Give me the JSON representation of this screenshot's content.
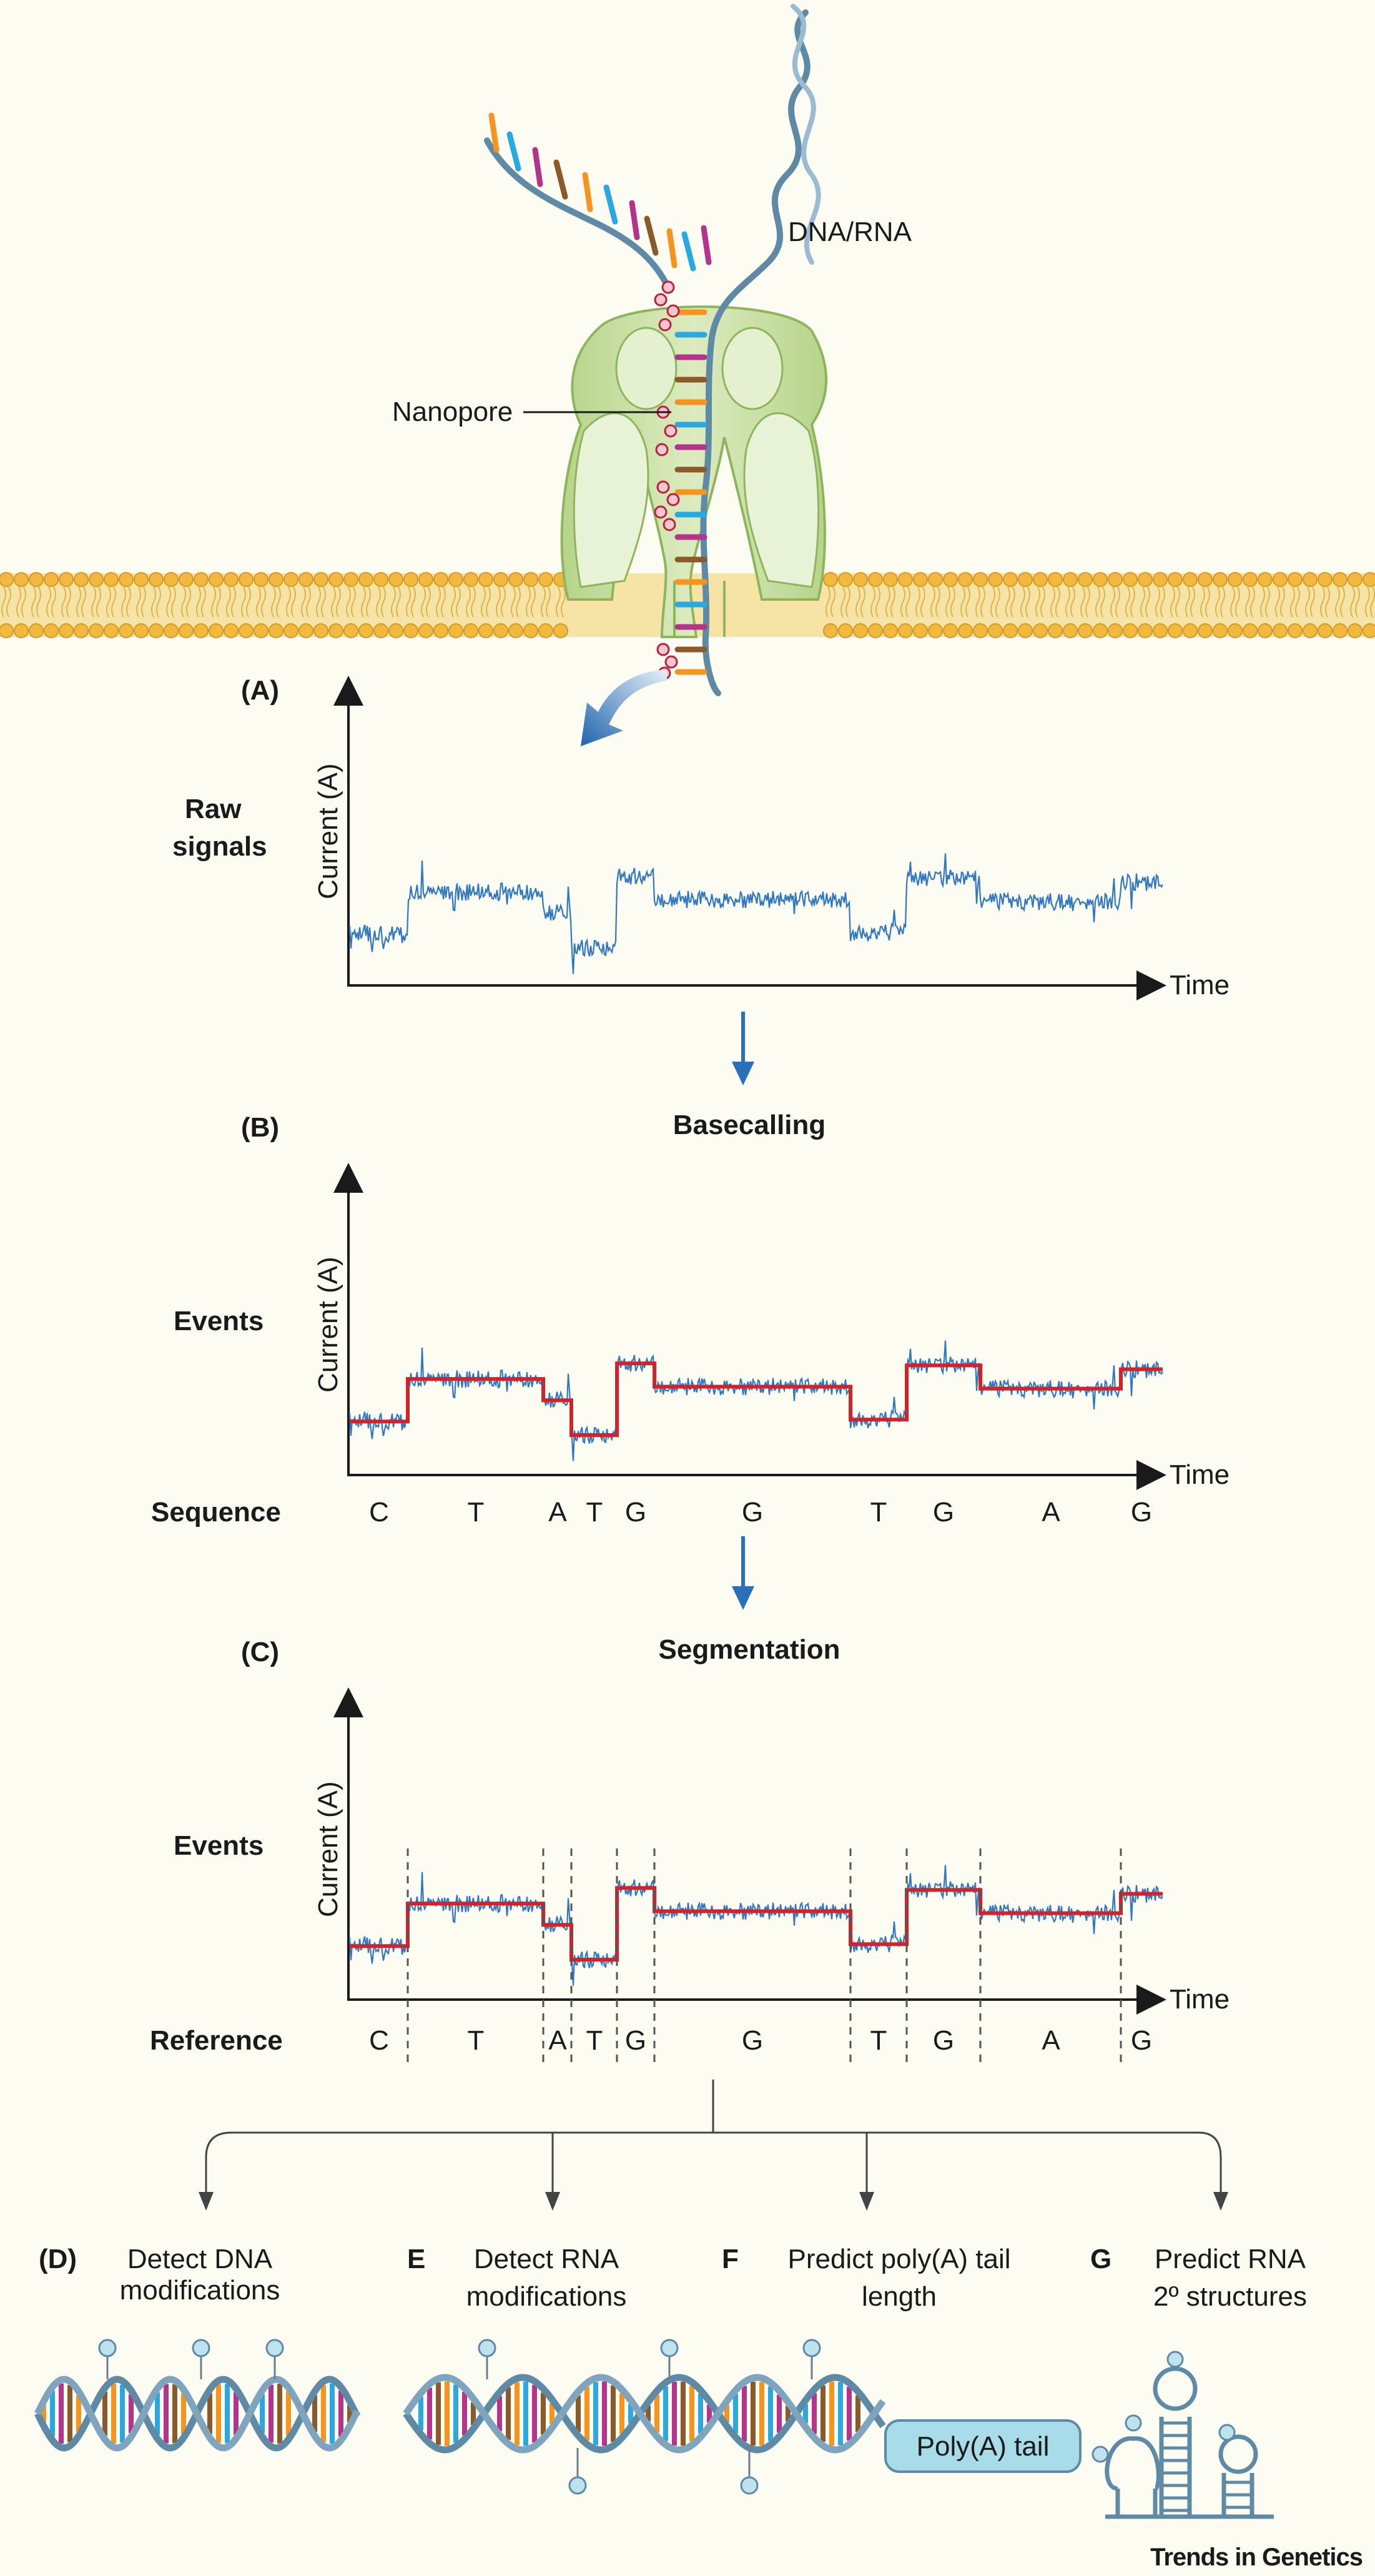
{
  "top": {
    "strand_label": "DNA/RNA",
    "pore_label": "Nanopore"
  },
  "panel_a": {
    "letter": "(A)",
    "side_label": [
      "Raw",
      "signals"
    ],
    "ylabel": "Current (A)",
    "xlabel": "Time"
  },
  "panel_b": {
    "letter": "(B)",
    "title": "Basecalling",
    "side_label": "Events",
    "ylabel": "Current (A)",
    "xlabel": "Time",
    "row_label": "Sequence"
  },
  "panel_c": {
    "letter": "(C)",
    "title": "Segmentation",
    "side_label": "Events",
    "ylabel": "Current (A)",
    "xlabel": "Time",
    "row_label": "Reference"
  },
  "bases": [
    "C",
    "T",
    "A",
    "T",
    "G",
    "G",
    "T",
    "G",
    "A",
    "G"
  ],
  "outputs": [
    {
      "letter": "(D)",
      "line1": "Detect DNA",
      "line2": "modifications"
    },
    {
      "letter": "E",
      "line1": "Detect RNA",
      "line2": "modifications"
    },
    {
      "letter": "F",
      "line1": "Predict poly(A) tail",
      "line2": "length"
    },
    {
      "letter": "G",
      "line1": "Predict RNA",
      "line2": "2º structures"
    }
  ],
  "polya_box": "Poly(A) tail",
  "footer": "Trends in Genetics",
  "colors": {
    "signal": "#2f78c0",
    "event_line": "#d2232a",
    "pore": "#c9e0a6",
    "membrane": "#f5d880",
    "arrow_blue": "#2a6fb8",
    "backbone": "#5f8aa6",
    "polya_fill": "#a9dce9"
  }
}
